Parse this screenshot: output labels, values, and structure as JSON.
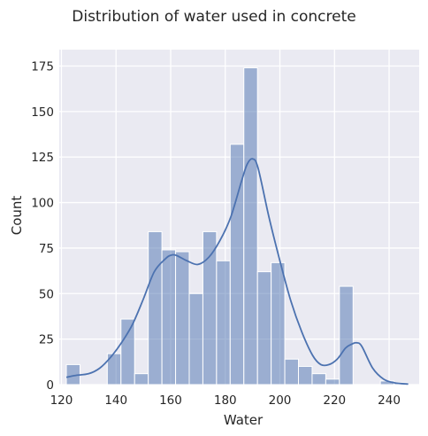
{
  "chart_data": {
    "type": "histogram",
    "title": "Distribution of water used in concrete",
    "xlabel": "Water",
    "ylabel": "Count",
    "xlim": [
      119.2,
      251.0
    ],
    "ylim": [
      0,
      184
    ],
    "xticks": [
      120,
      140,
      160,
      180,
      200,
      220,
      240
    ],
    "yticks": [
      0,
      25,
      50,
      75,
      100,
      125,
      150,
      175
    ],
    "grid": true,
    "colors": {
      "background": "#eaeaf2",
      "grid": "#ffffff",
      "bar_fill": "#4c72b0",
      "bar_opacity": 0.5,
      "bar_edge": "#ffffff",
      "kde_line": "#4c72b0"
    },
    "bins": [
      {
        "x0": 121.8,
        "x1": 126.8,
        "count": 11
      },
      {
        "x0": 126.8,
        "x1": 131.8,
        "count": 0
      },
      {
        "x0": 131.8,
        "x1": 136.8,
        "count": 0
      },
      {
        "x0": 136.8,
        "x1": 141.8,
        "count": 17
      },
      {
        "x0": 141.8,
        "x1": 146.8,
        "count": 36
      },
      {
        "x0": 146.8,
        "x1": 151.8,
        "count": 6
      },
      {
        "x0": 151.8,
        "x1": 156.8,
        "count": 84
      },
      {
        "x0": 156.8,
        "x1": 161.8,
        "count": 74
      },
      {
        "x0": 161.8,
        "x1": 166.8,
        "count": 73
      },
      {
        "x0": 166.8,
        "x1": 171.8,
        "count": 50
      },
      {
        "x0": 171.8,
        "x1": 176.8,
        "count": 84
      },
      {
        "x0": 176.8,
        "x1": 181.8,
        "count": 68
      },
      {
        "x0": 181.8,
        "x1": 186.8,
        "count": 132
      },
      {
        "x0": 186.8,
        "x1": 191.8,
        "count": 174
      },
      {
        "x0": 191.8,
        "x1": 196.8,
        "count": 62
      },
      {
        "x0": 196.8,
        "x1": 201.8,
        "count": 67
      },
      {
        "x0": 201.8,
        "x1": 206.8,
        "count": 14
      },
      {
        "x0": 206.8,
        "x1": 211.8,
        "count": 10
      },
      {
        "x0": 211.8,
        "x1": 216.8,
        "count": 6
      },
      {
        "x0": 216.8,
        "x1": 221.8,
        "count": 3
      },
      {
        "x0": 221.8,
        "x1": 226.8,
        "count": 54
      },
      {
        "x0": 226.8,
        "x1": 231.8,
        "count": 0
      },
      {
        "x0": 231.8,
        "x1": 236.8,
        "count": 0
      },
      {
        "x0": 236.8,
        "x1": 241.8,
        "count": 2
      },
      {
        "x0": 241.8,
        "x1": 246.8,
        "count": 1
      }
    ],
    "kde": {
      "x": [
        121.8,
        125,
        130,
        134,
        138,
        142,
        146,
        150,
        154,
        158,
        160,
        162,
        166,
        170,
        174,
        178,
        182,
        186,
        188,
        190,
        192,
        196,
        200,
        204,
        208,
        212,
        215,
        218,
        221,
        224,
        226,
        228,
        230,
        234,
        238,
        242,
        247
      ],
      "y": [
        4,
        5,
        6,
        9,
        15,
        23,
        33,
        47,
        62,
        69,
        71,
        71,
        68,
        66,
        70,
        79,
        92,
        112,
        121,
        124,
        119,
        92,
        68,
        46,
        29,
        16,
        11,
        11,
        14,
        20,
        22,
        23,
        21,
        9,
        3,
        1,
        0.3
      ]
    }
  }
}
